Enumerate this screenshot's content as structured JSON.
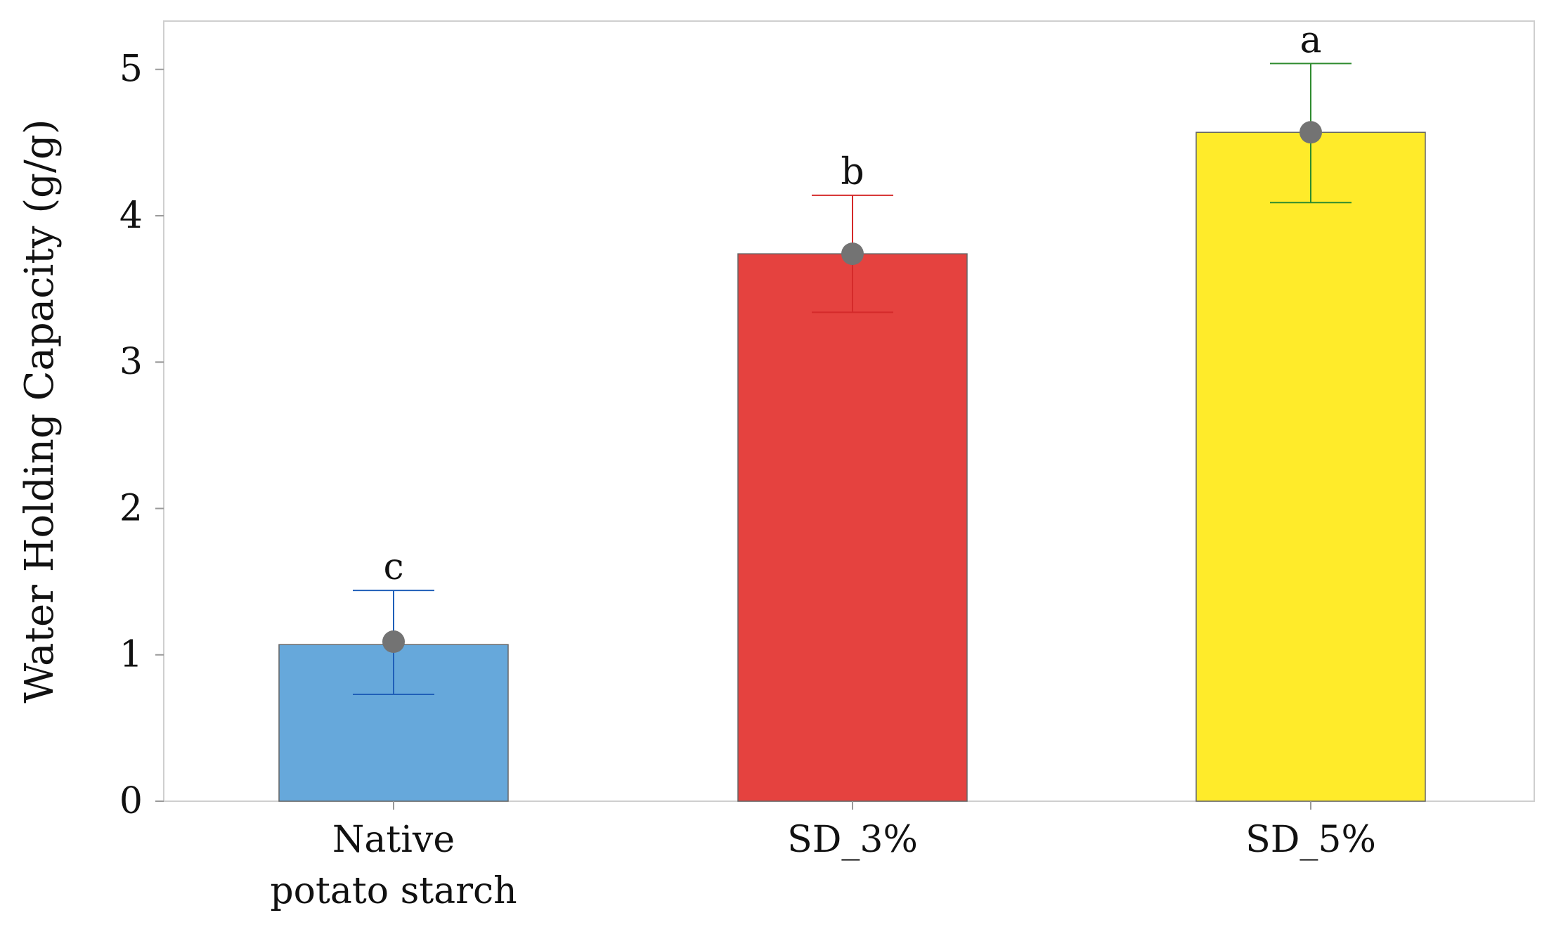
{
  "chart_data": {
    "type": "bar",
    "title": "",
    "xlabel": "",
    "ylabel": "Water Holding Capacity  (g/g)",
    "ylim": [
      0,
      5.33
    ],
    "yticks": [
      "0",
      "1",
      "2",
      "3",
      "4",
      "5"
    ],
    "grid": false,
    "categories": [
      {
        "lines": [
          "Native",
          "potato starch"
        ]
      },
      {
        "lines": [
          "SD_3%"
        ]
      },
      {
        "lines": [
          "SD_5%"
        ]
      }
    ],
    "series": [
      {
        "values": [
          1.07,
          3.74,
          4.57
        ],
        "point_values": [
          1.09,
          3.74,
          4.57
        ],
        "error_upper": [
          1.44,
          4.14,
          5.04
        ],
        "error_lower": [
          0.73,
          3.34,
          4.09
        ],
        "significance": [
          "c",
          "b",
          "a"
        ],
        "colors": [
          "#66a8db",
          "#e5423f",
          "#ffeb2a"
        ],
        "error_colors": [
          "#1f5fb8",
          "#d42a2a",
          "#2e8b2e"
        ],
        "point_color": "#737373"
      }
    ]
  }
}
